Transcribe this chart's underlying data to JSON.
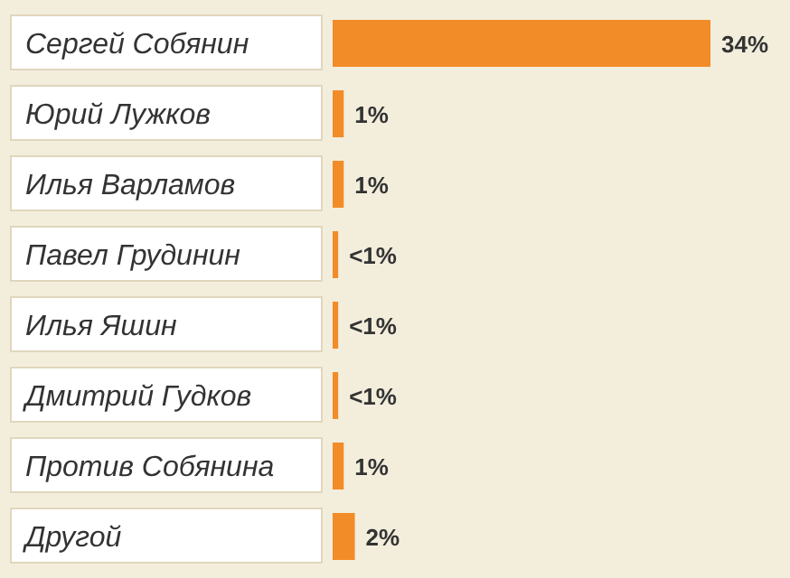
{
  "chart_data": {
    "type": "bar",
    "orientation": "horizontal",
    "tick_labels": "y",
    "categories": [
      "Сергей Собянин",
      "Юрий Лужков",
      "Илья Варламов",
      "Павел Грудинин",
      "Илья Яшин",
      "Дмитрий Гудков",
      "Против Собянина",
      "Другой"
    ],
    "values": [
      34,
      1,
      1,
      0.5,
      0.5,
      0.5,
      1,
      2
    ],
    "value_labels": [
      "34%",
      "1%",
      "1%",
      "<1%",
      "<1%",
      "<1%",
      "1%",
      "2%"
    ],
    "color": "#f28c28"
  }
}
